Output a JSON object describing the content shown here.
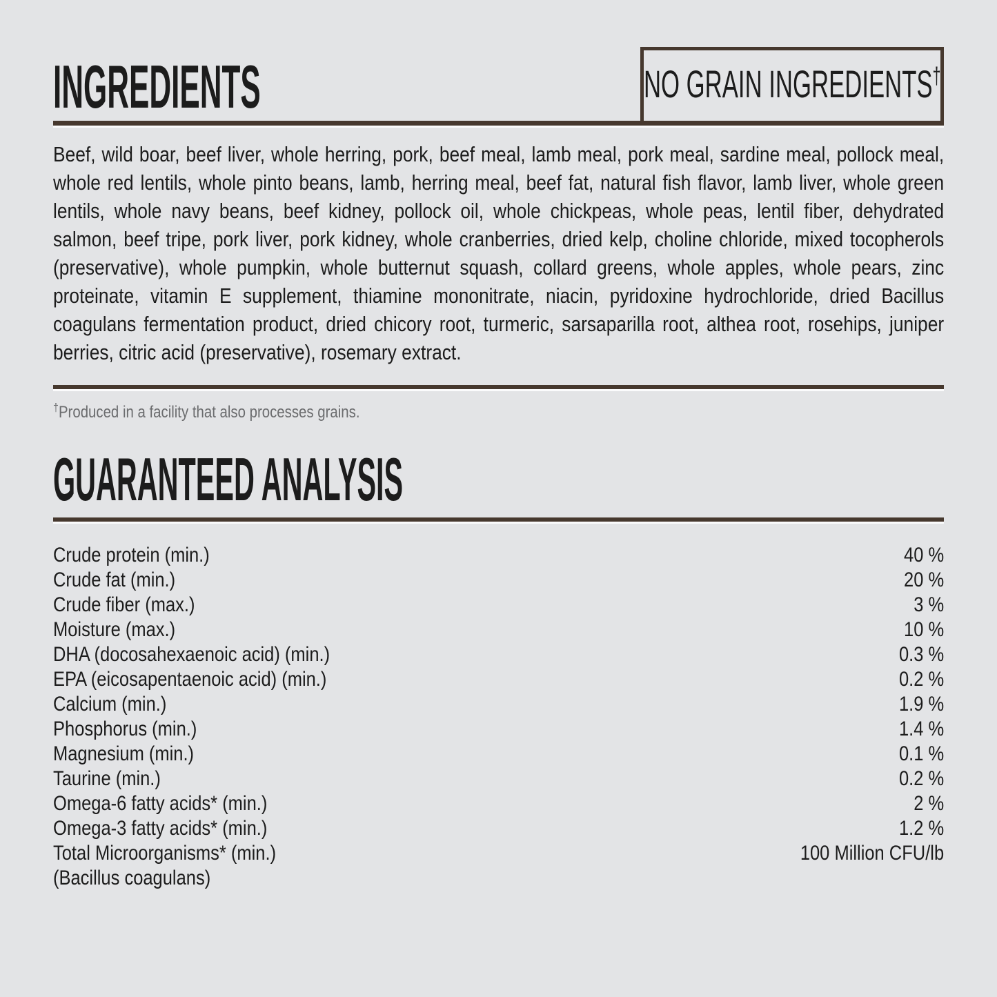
{
  "colors": {
    "background": "#e3e4e6",
    "ink": "#1c1c1c",
    "accent": "#46382e",
    "muted": "#6b6c6e"
  },
  "ingredients_section": {
    "title": "INGREDIENTS",
    "no_grain_badge": {
      "label": "NO GRAIN INGREDIENTS",
      "dagger": "†"
    },
    "body": "Beef, wild boar, beef liver, whole herring, pork, beef meal, lamb meal, pork meal, sardine meal, pollock meal, whole red lentils, whole pinto beans, lamb, herring meal, beef fat, natural fish flavor, lamb liver, whole green lentils, whole navy beans, beef kidney, pollock oil, whole chickpeas, whole peas, lentil fiber, dehydrated salmon, beef tripe, pork liver, pork kidney, whole cranberries, dried kelp, choline chloride, mixed tocopherols (preservative), whole pumpkin, whole butternut squash, collard greens, whole apples, whole pears, zinc proteinate, vitamin E supplement, thiamine mononitrate, niacin, pyridoxine hydrochloride, dried Bacillus coagulans fermentation product, dried chicory root, turmeric, sarsaparilla root, althea root, rosehips, juniper berries, citric acid (preservative), rosemary extract.",
    "footnote": {
      "dagger": "†",
      "text": "Produced in a facility that also processes grains."
    }
  },
  "analysis_section": {
    "title": "GUARANTEED ANALYSIS",
    "rows": [
      {
        "label": "Crude protein (min.)",
        "value": "40 %"
      },
      {
        "label": "Crude fat (min.)",
        "value": "20 %"
      },
      {
        "label": "Crude fiber (max.)",
        "value": "3 %"
      },
      {
        "label": "Moisture (max.)",
        "value": "10 %"
      },
      {
        "label": "DHA (docosahexaenoic acid) (min.)",
        "value": "0.3 %"
      },
      {
        "label": "EPA (eicosapentaenoic acid) (min.)",
        "value": "0.2 %"
      },
      {
        "label": "Calcium (min.)",
        "value": "1.9 %"
      },
      {
        "label": "Phosphorus (min.)",
        "value": "1.4 %"
      },
      {
        "label": "Magnesium (min.)",
        "value": "0.1 %"
      },
      {
        "label": "Taurine (min.)",
        "value": "0.2 %"
      },
      {
        "label": "Omega-6 fatty acids* (min.)",
        "value": "2 %"
      },
      {
        "label": "Omega-3 fatty acids* (min.)",
        "value": "1.2 %"
      },
      {
        "label": "Total Microorganisms* (min.)",
        "value": "100 Million CFU/lb"
      },
      {
        "label": "(Bacillus coagulans)",
        "value": ""
      }
    ]
  }
}
